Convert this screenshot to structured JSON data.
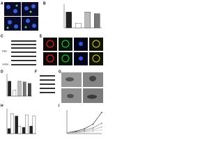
{
  "panels": [
    "A",
    "B",
    "C",
    "D",
    "E",
    "F",
    "G",
    "H",
    "I"
  ],
  "blot_labels": [
    "PHB2",
    "GAPDH"
  ],
  "charts": {
    "b": {
      "type": "bar",
      "values": [
        1.0,
        0.3,
        1.0,
        0.9
      ],
      "colors": [
        "#222222",
        "#ffffff",
        "#bbbbbb",
        "#777777"
      ],
      "ylim": [
        0,
        1.5
      ]
    },
    "d": {
      "type": "bar",
      "values": [
        1.0,
        0.4,
        1.0,
        0.95,
        0.85
      ],
      "colors": [
        "#222222",
        "#ffffff",
        "#bbbbbb",
        "#777777",
        "#444444"
      ],
      "ylim": [
        0,
        1.5
      ]
    },
    "h": {
      "type": "bar",
      "series": [
        {
          "color": "#222222",
          "values": [
            20,
            70,
            25,
            30
          ]
        },
        {
          "color": "#ffffff",
          "values": [
            80,
            30,
            75,
            70
          ]
        }
      ],
      "ylim": [
        0,
        100
      ]
    },
    "i": {
      "type": "line",
      "x": [
        0,
        1,
        2,
        3,
        4
      ],
      "series": [
        {
          "color": "#222222",
          "values": [
            2,
            5,
            10,
            20,
            45
          ]
        },
        {
          "color": "#666666",
          "values": [
            2,
            4,
            7,
            12,
            22
          ]
        },
        {
          "color": "#999999",
          "values": [
            2,
            3,
            5,
            8,
            14
          ]
        },
        {
          "color": "#bbbbbb",
          "values": [
            1,
            2,
            3,
            5,
            8
          ]
        }
      ],
      "xlim": [
        0,
        4
      ],
      "ylim": [
        0,
        50
      ]
    }
  }
}
